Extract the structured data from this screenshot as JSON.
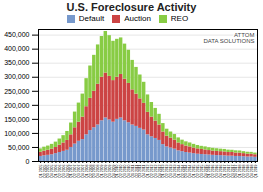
{
  "chart_data": {
    "type": "bar",
    "stacked": true,
    "title": "U.S. Foreclosure Activity",
    "categories": [
      "Q1 2005",
      "Q2 2005",
      "Q3 2005",
      "Q4 2005",
      "Q1 2006",
      "Q2 2006",
      "Q3 2006",
      "Q4 2006",
      "Q1 2007",
      "Q2 2007",
      "Q3 2007",
      "Q4 2007",
      "Q1 2008",
      "Q2 2008",
      "Q3 2008",
      "Q4 2008",
      "Q1 2009",
      "Q2 2009",
      "Q3 2009",
      "Q4 2009",
      "Q1 2010",
      "Q2 2010",
      "Q3 2010",
      "Q4 2010",
      "Q1 2011",
      "Q2 2011",
      "Q3 2011",
      "Q4 2011",
      "Q1 2012",
      "Q2 2012",
      "Q3 2012",
      "Q4 2012",
      "Q1 2013",
      "Q2 2013",
      "Q3 2013",
      "Q4 2013",
      "Q1 2014",
      "Q2 2014",
      "Q3 2014",
      "Q4 2014",
      "Q1 2015",
      "Q2 2015",
      "Q3 2015",
      "Q4 2015",
      "Q1 2016",
      "Q2 2016",
      "Q3 2016",
      "Q4 2016",
      "Q1 2017",
      "Q2 2017",
      "Q3 2017",
      "Q4 2017",
      "Q1 2018",
      "Q2 2018",
      "Q3 2018",
      "Q4 2018",
      "Q1 2019"
    ],
    "series": [
      {
        "name": "Default",
        "color": "#7799cc",
        "values": [
          18000,
          20000,
          22000,
          24000,
          28000,
          32000,
          36000,
          40000,
          50000,
          62000,
          72000,
          78000,
          95000,
          110000,
          120000,
          130000,
          145000,
          155000,
          148000,
          140000,
          150000,
          155000,
          145000,
          138000,
          130000,
          125000,
          118000,
          112000,
          95000,
          88000,
          82000,
          75000,
          60000,
          52000,
          48000,
          44000,
          38000,
          35000,
          32000,
          30000,
          28000,
          26000,
          25000,
          24000,
          23000,
          22000,
          21000,
          21000,
          20000,
          19000,
          19000,
          18000,
          18000,
          17000,
          16000,
          16000,
          15000
        ]
      },
      {
        "name": "Auction",
        "color": "#cc4444",
        "values": [
          15000,
          17000,
          18000,
          20000,
          22000,
          26000,
          30000,
          35000,
          45000,
          58000,
          68000,
          80000,
          100000,
          115000,
          130000,
          145000,
          155000,
          160000,
          155000,
          148000,
          150000,
          155000,
          148000,
          140000,
          125000,
          115000,
          105000,
          95000,
          80000,
          70000,
          62000,
          55000,
          45000,
          38000,
          35000,
          32000,
          28000,
          25000,
          23000,
          22000,
          20000,
          19000,
          18000,
          17000,
          16000,
          15000,
          15000,
          14000,
          14000,
          13000,
          13000,
          12000,
          12000,
          11000,
          10000,
          10000,
          9000
        ]
      },
      {
        "name": "REO",
        "color": "#88cc44",
        "values": [
          12000,
          14000,
          15000,
          17000,
          19000,
          22000,
          26000,
          32000,
          42000,
          56000,
          68000,
          82000,
          100000,
          115000,
          128000,
          140000,
          145000,
          148000,
          145000,
          140000,
          135000,
          130000,
          125000,
          118000,
          105000,
          95000,
          85000,
          75000,
          62000,
          52000,
          45000,
          38000,
          30000,
          25000,
          22000,
          20000,
          18000,
          16000,
          15000,
          14000,
          13000,
          12000,
          11000,
          11000,
          10000,
          10000,
          9500,
          9000,
          9000,
          8500,
          8000,
          8000,
          7500,
          7000,
          7000,
          6500,
          6000
        ]
      }
    ],
    "ylim": [
      0,
      470000
    ],
    "yticks": [
      0,
      {
        "value": 50000,
        "label": "50,000"
      },
      {
        "value": 100000,
        "label": "100,000"
      },
      {
        "value": 150000,
        "label": "150,000"
      },
      {
        "value": 200000,
        "label": "200,000"
      },
      {
        "value": 250000,
        "label": "250,000"
      },
      {
        "value": 300000,
        "label": "300,000"
      },
      {
        "value": 350000,
        "label": "350,000"
      },
      {
        "value": 400000,
        "label": "400,000"
      },
      {
        "value": 450000,
        "label": "450,000"
      }
    ],
    "grid": true,
    "legend": "top",
    "annotations": [
      "ATTOM\nDATA SOLUTIONS"
    ]
  }
}
